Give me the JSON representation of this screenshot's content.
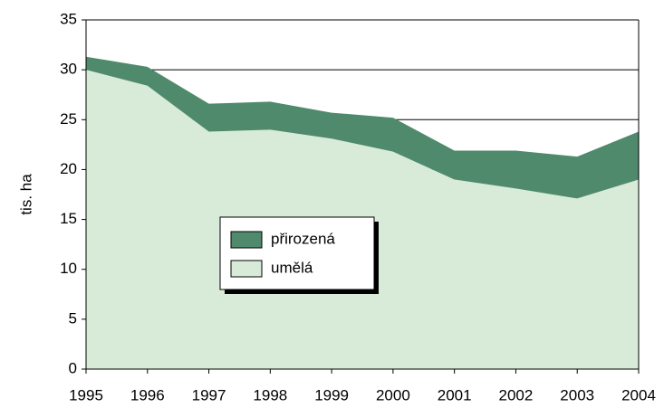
{
  "chart_data": {
    "type": "stacked_area",
    "ylabel": "tis. ha",
    "categories": [
      "1995",
      "1996",
      "1997",
      "1998",
      "1999",
      "2000",
      "2001",
      "2002",
      "2003",
      "2004"
    ],
    "series": [
      {
        "name": "přirozená",
        "color": "#4f8a6c",
        "values": [
          1.3,
          1.9,
          2.8,
          2.8,
          2.6,
          3.4,
          2.9,
          3.8,
          4.2,
          4.8
        ]
      },
      {
        "name": "umělá",
        "color": "#d8ebd9",
        "values": [
          30.0,
          28.4,
          23.8,
          24.0,
          23.1,
          21.8,
          19.0,
          18.1,
          17.1,
          19.0
        ]
      }
    ],
    "ylim": [
      0,
      35
    ],
    "yticks": [
      0,
      5,
      10,
      15,
      20,
      25,
      30,
      35
    ],
    "grid": true
  }
}
